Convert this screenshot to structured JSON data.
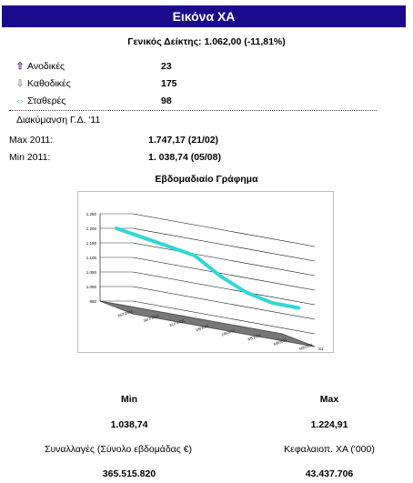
{
  "header": {
    "title": "Εικόνα ΧΑ"
  },
  "index_line": "Γενικός Δείκτης: 1.062,00 (-11,81%)",
  "stats": [
    {
      "icon": "up-arrow-icon",
      "glyph": "⇧",
      "color": "#5a2a8c",
      "label": "Ανοδικές",
      "value": "23"
    },
    {
      "icon": "down-arrow-icon",
      "glyph": "⇩",
      "color": "#9a9a9a",
      "label": "Καθοδικές",
      "value": "175"
    },
    {
      "icon": "left-right-arrow-icon",
      "glyph": "⇔",
      "color": "#20b8d8",
      "label": "Σταθερές",
      "value": "98"
    }
  ],
  "range_title": "Διακύμανση Γ.Δ. '11",
  "max_2011": {
    "label": "Max 2011:",
    "value": "1.747,17  (21/02)"
  },
  "min_2011": {
    "label": "Min 2011:",
    "value": "1. 038,74  (05/08)"
  },
  "chart_title": "Εβδομαδιαίο Γράφημα",
  "chart_data": {
    "type": "line",
    "x": [
      "29/7/2011",
      "30/7/2011",
      "31/7/2011",
      "1/8/2011",
      "2/8/2011",
      "3/8/2011",
      "4/8/2011",
      "5/8/2011"
    ],
    "series": [
      {
        "values": [
          1200,
          1185,
          1170,
          1155,
          1100,
          1060,
          1040,
          1039
        ],
        "color": "#33d6d6"
      }
    ],
    "y_ticks": [
      "950",
      "1.000",
      "1.050",
      "1.100",
      "1.150",
      "1.200",
      "1.250"
    ],
    "ylim": [
      950,
      1250
    ],
    "series_axis_label": "S1",
    "grid": true
  },
  "summary": {
    "min_label": "Min",
    "max_label": "Max",
    "min_value": "1.038,74",
    "max_value": "1.224,91",
    "trades_label": "Συναλλαγές (Σύνολο εβδομάδας €)",
    "cap_label": "Κεφαλαιοπ. ΧΑ ('000)",
    "trades_value": "365.515.820",
    "cap_value": "43.437.706"
  }
}
